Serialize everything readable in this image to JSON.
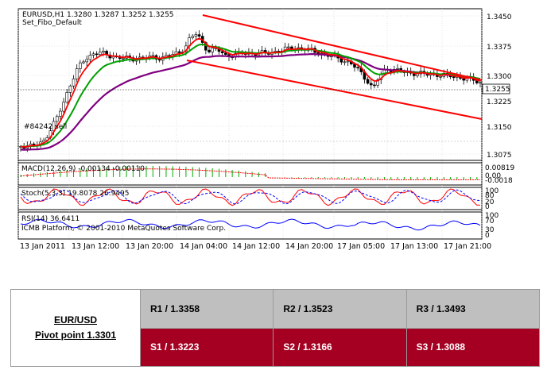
{
  "chart": {
    "header_line1": "EURUSD,H1  1.3280 1.3287 1.3252 1.3255",
    "header_line2": "Set_Fibo_Default",
    "object_label": "#84242 sell",
    "price_ticks": [
      "1.3450",
      "1.3375",
      "1.3300",
      "1.3225",
      "1.3150",
      "1.3075"
    ],
    "current_price": "1.3255",
    "macd_label": "MACD(12,26,9) -0.00134 -0.00110",
    "macd_ticks": [
      "0.00819",
      "0.00",
      "-0.0018"
    ],
    "stoch_label": "Stoch(5,3,3) 19.8078 26.9495",
    "stoch_ticks": [
      "100",
      "80",
      "20",
      "0"
    ],
    "rsi_label": "RSI(14) 36.6411",
    "rsi_ticks": [
      "100",
      "70",
      "30",
      "0"
    ],
    "copyright": "ICMB Platform, © 2001-2010 MetaQuotes Software Corp.",
    "time_ticks": [
      "13 Jan 2011",
      "13 Jan 12:00",
      "13 Jan 20:00",
      "14 Jan 04:00",
      "14 Jan 12:00",
      "14 Jan 20:00",
      "17 Jan 05:00",
      "17 Jan 13:00",
      "17 Jan 21:00"
    ],
    "colors": {
      "bull": "#ffffff",
      "bear": "#000000",
      "ma_fast": "#ff0000",
      "ma_mid": "#00a000",
      "ma_slow": "#800080",
      "channel": "#ff0000",
      "macd_hist": "#00b000",
      "macd_signal": "#ff0000",
      "stoch_main": "#ff0000",
      "stoch_signal": "#0000ff",
      "rsi_line": "#0000ff"
    }
  },
  "pivot": {
    "pair": "EUR/USD",
    "pivot_label": "Pivot point 1.3301",
    "r1": "R1 / 1.3358",
    "r2": "R2 / 1.3523",
    "r3": "R3 / 1.3493",
    "s1": "S1 / 1.3223",
    "s2": "S2 / 1.3166",
    "s3": "S3 / 1.3088",
    "colors": {
      "resistance_bg": "#bfbfbf",
      "support_bg": "#a50021",
      "support_text": "#ffffff"
    }
  }
}
